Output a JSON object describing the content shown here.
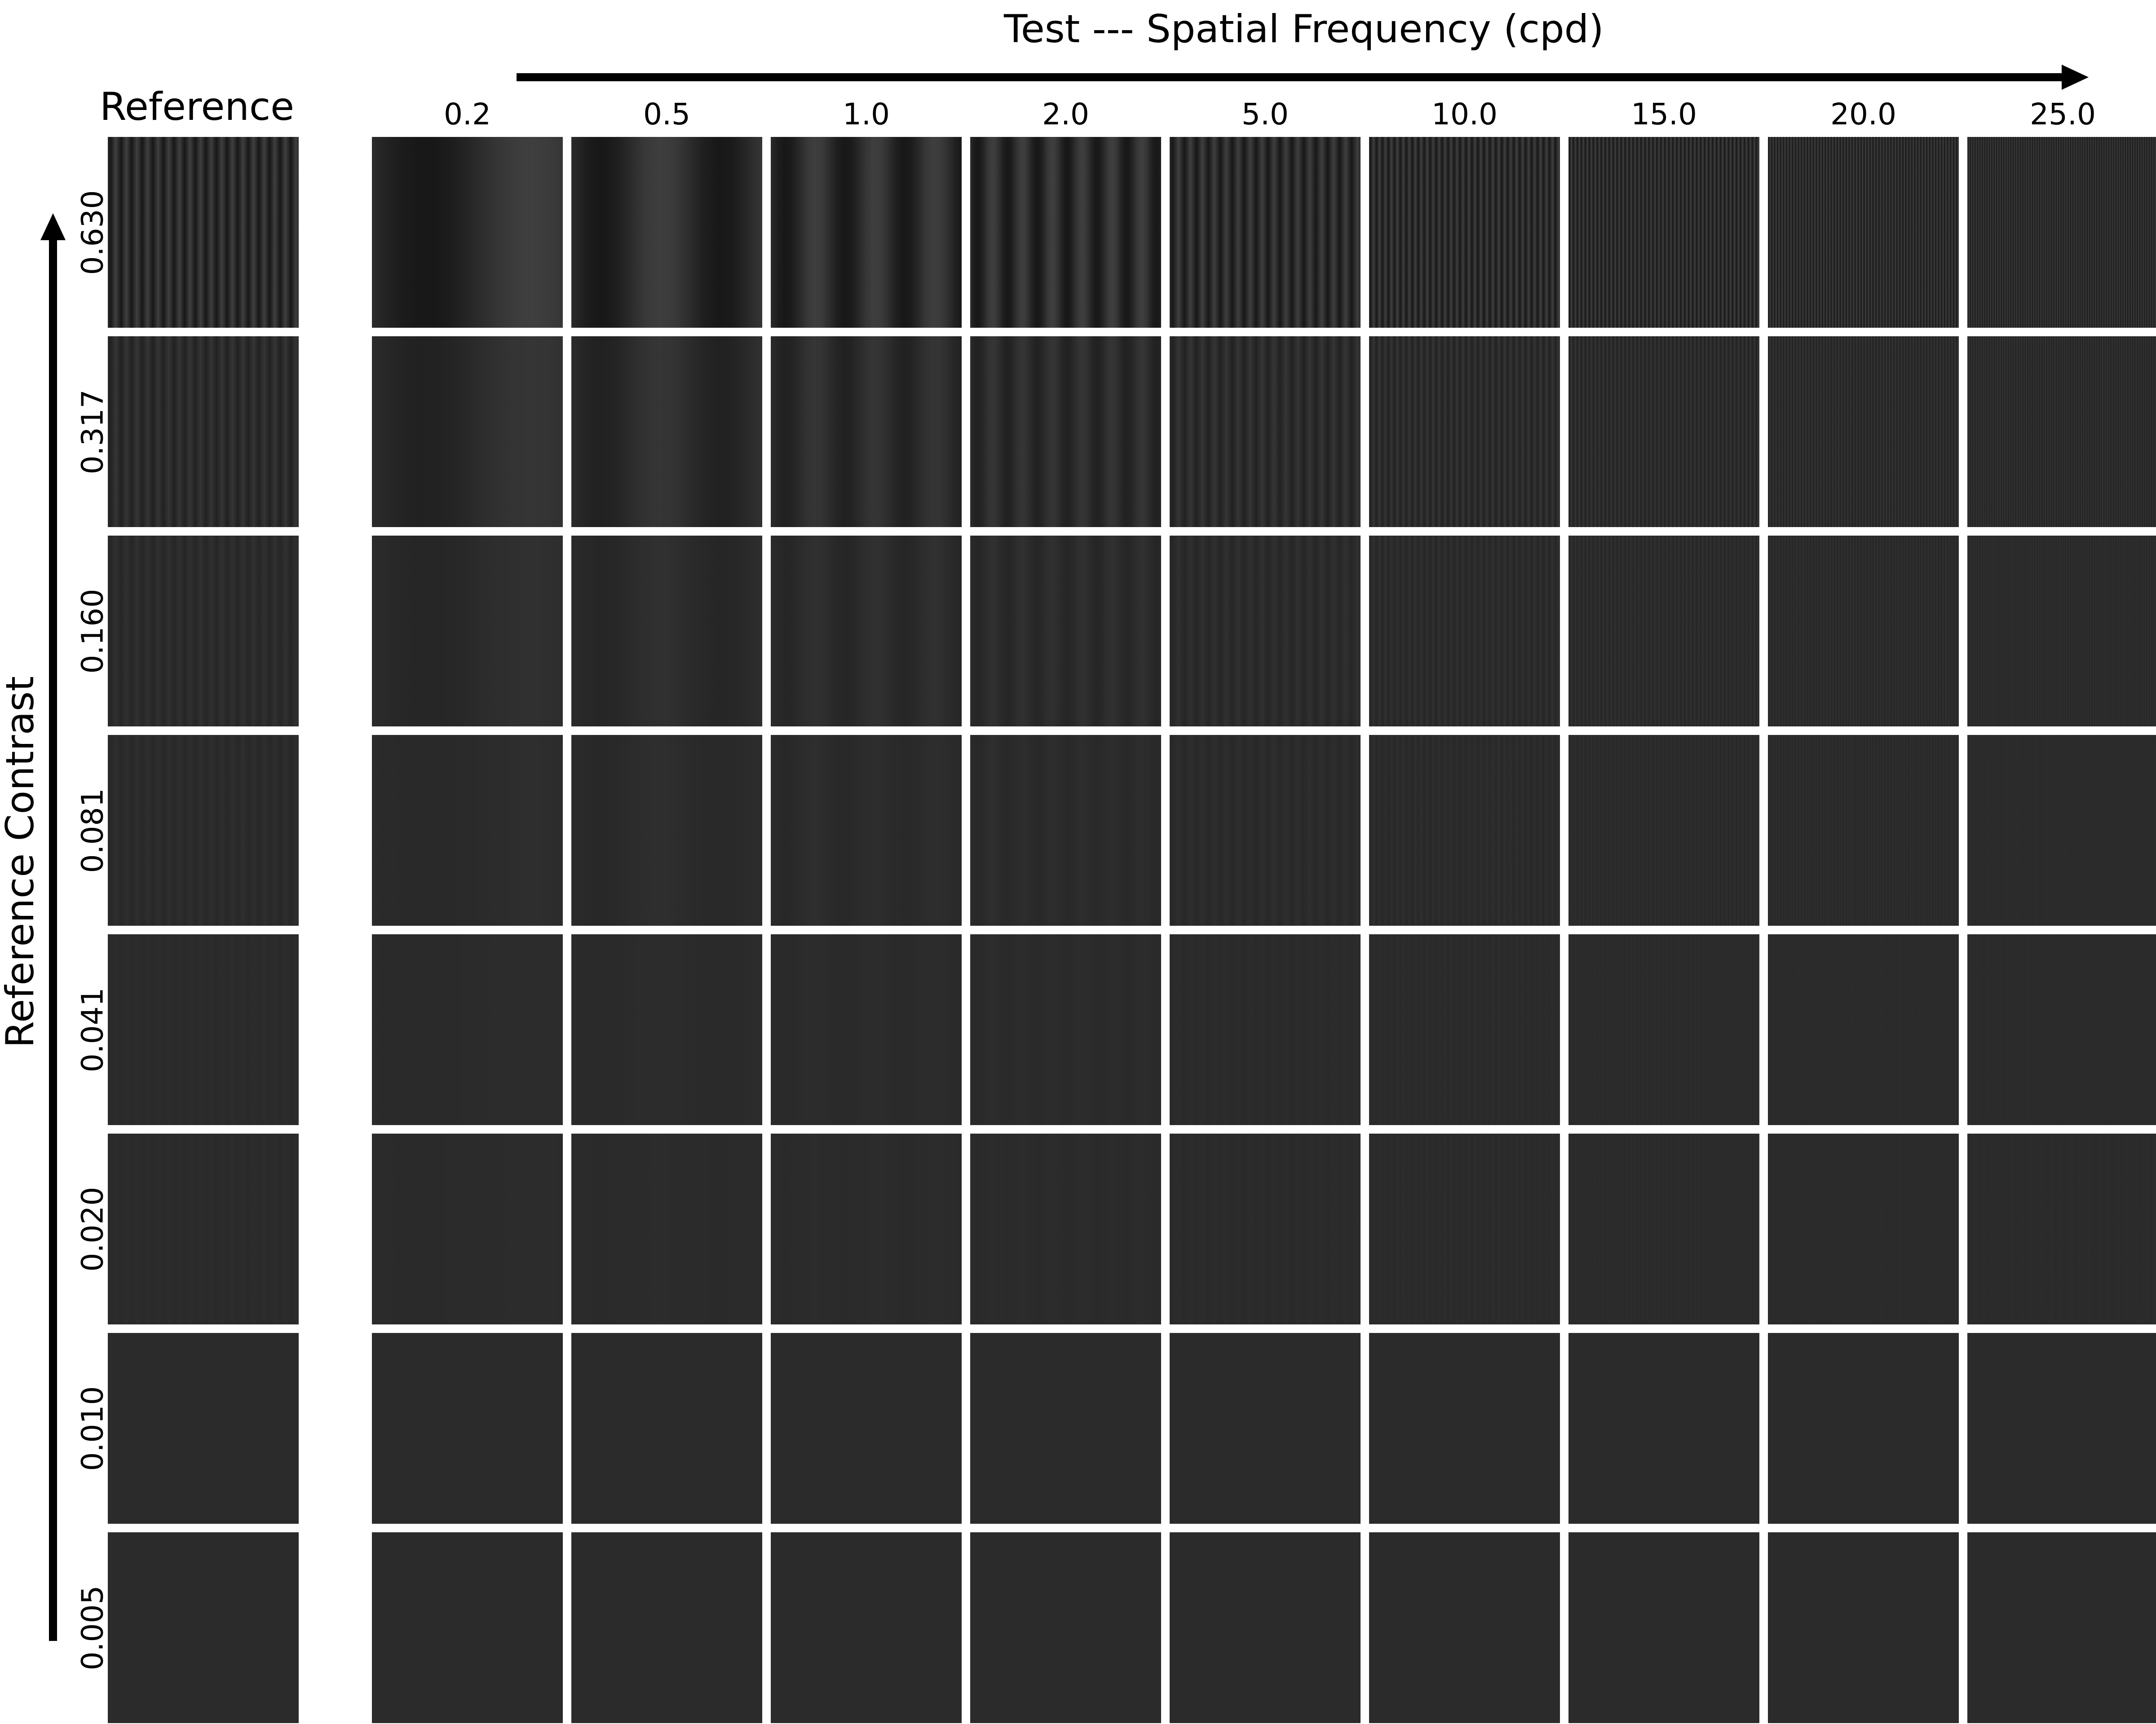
{
  "titles": {
    "top": "Test --- Spatial Frequency (cpd)",
    "left": "Reference Contrast",
    "reference": "Reference"
  },
  "spatial_frequencies": [
    "0.2",
    "0.5",
    "1.0",
    "2.0",
    "5.0",
    "10.0",
    "15.0",
    "20.0",
    "25.0"
  ],
  "reference_contrasts": [
    "0.630",
    "0.317",
    "0.160",
    "0.081",
    "0.041",
    "0.020",
    "0.010",
    "0.005"
  ],
  "colors": {
    "background": "#2b2b2b",
    "dark": "#131313",
    "light": "#3a3a3a",
    "divider": "#ffffff",
    "arrow": "#000000"
  }
}
